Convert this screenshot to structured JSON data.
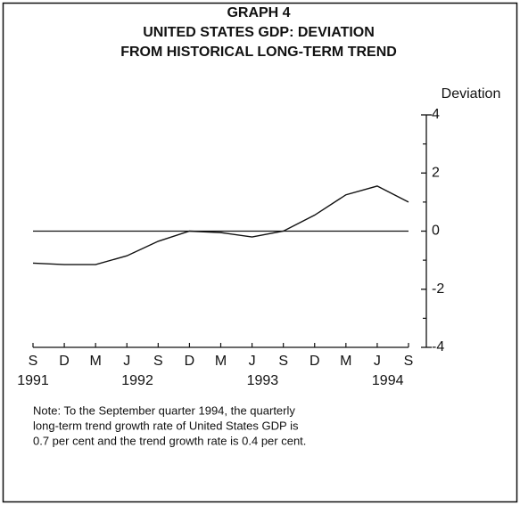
{
  "chart_data": {
    "type": "line",
    "title": [
      "GRAPH 4",
      "UNITED STATES GDP: DEVIATION",
      "FROM HISTORICAL LONG-TERM TREND"
    ],
    "y_axis_label": "Deviation",
    "categories": [
      "S",
      "D",
      "M",
      "J",
      "S",
      "D",
      "M",
      "J",
      "S",
      "D",
      "M",
      "J",
      "S"
    ],
    "years": [
      "1991",
      null,
      null,
      "1992",
      null,
      null,
      null,
      "1993",
      null,
      null,
      null,
      "1994",
      null
    ],
    "series": [
      {
        "name": "GDP deviation",
        "color": "#111111",
        "values": [
          -1.1,
          -1.15,
          -1.15,
          -0.85,
          -0.35,
          0,
          -0.05,
          -0.2,
          0,
          0.55,
          1.25,
          1.55,
          1.0
        ]
      }
    ],
    "reference_line": 0,
    "ylim": [
      -4,
      4
    ],
    "yticks": [
      -4,
      -2,
      0,
      2,
      4
    ],
    "yticks_minor": [
      -3,
      -1,
      1,
      3
    ],
    "note": [
      "Note: To the September quarter 1994, the quarterly",
      "long-term trend  growth rate of United States GDP is",
      "0.7 per cent and the trend growth rate is 0.4 per cent."
    ]
  }
}
